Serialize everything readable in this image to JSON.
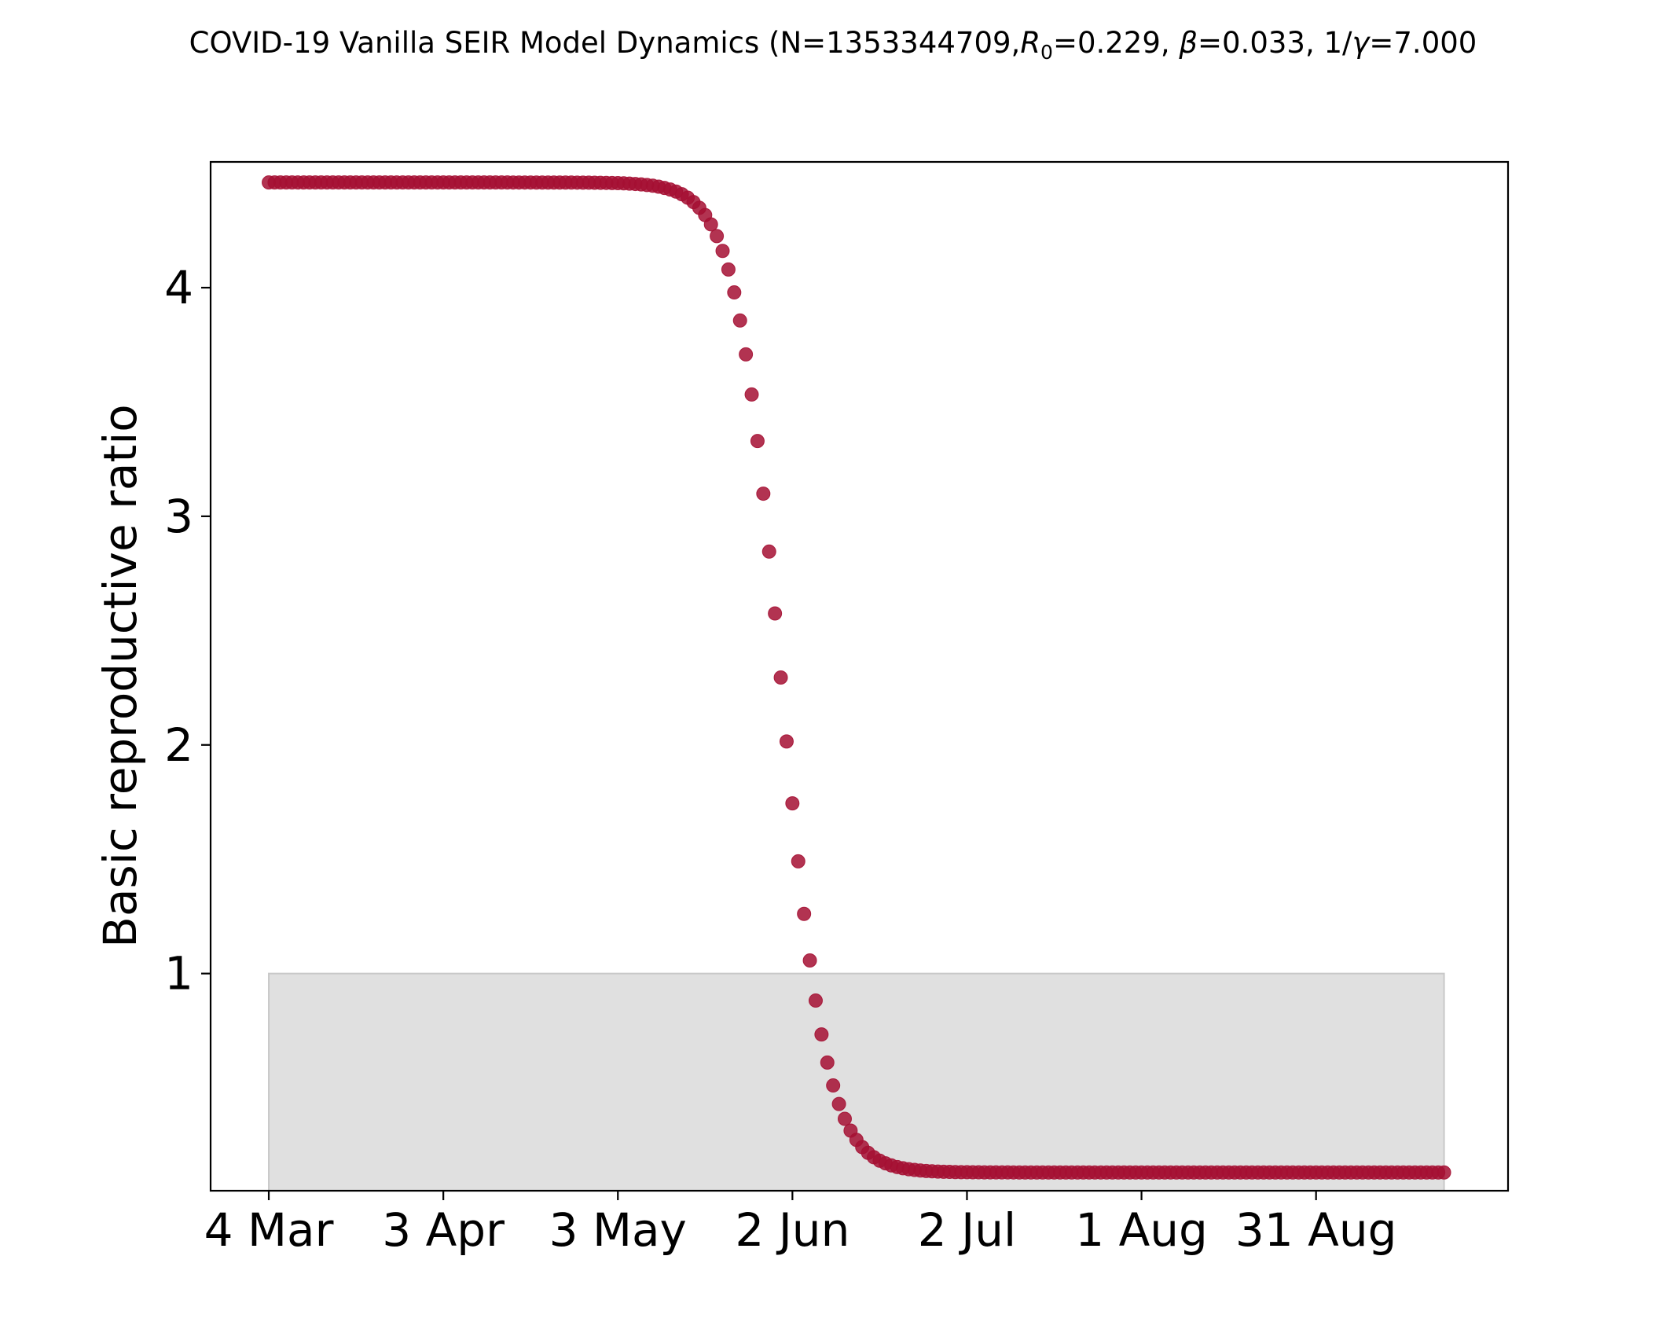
{
  "chart_data": {
    "type": "scatter",
    "title": {
      "pre": "COVID-19 Vanilla SEIR Model Dynamics (N=1353344709,",
      "r_sym": "R",
      "r_sub": "0",
      "r_val": "=0.229, ",
      "beta_sym": "β",
      "beta_val": "=0.033, 1/",
      "gamma_sym": "γ",
      "gamma_val": "=7.000"
    },
    "ylabel": "Basic reproductive ratio",
    "xlabel": "",
    "x_range": [
      "2020-03-04",
      "2020-09-22"
    ],
    "xlim": [
      "2020-02-23",
      "2020-10-03"
    ],
    "ylim": [
      0.05,
      4.55
    ],
    "x_ticks": [
      {
        "date": "2020-03-04",
        "label": "4 Mar"
      },
      {
        "date": "2020-04-03",
        "label": "3 Apr"
      },
      {
        "date": "2020-05-03",
        "label": "3 May"
      },
      {
        "date": "2020-06-02",
        "label": "2 Jun"
      },
      {
        "date": "2020-07-02",
        "label": "2 Jul"
      },
      {
        "date": "2020-08-01",
        "label": "1 Aug"
      },
      {
        "date": "2020-08-31",
        "label": "31 Aug"
      }
    ],
    "y_ticks": [
      {
        "value": 1,
        "label": "1"
      },
      {
        "value": 2,
        "label": "2"
      },
      {
        "value": 3,
        "label": "3"
      },
      {
        "value": 4,
        "label": "4"
      }
    ],
    "band": {
      "y_from": 0.05,
      "y_to": 1.0,
      "x_from": "2020-03-04",
      "x_to": "2020-09-22",
      "color": "#e0e0e0"
    },
    "series": [
      {
        "color": "#a50f33",
        "curve": {
          "start": "2020-03-04",
          "end": "2020-09-22",
          "y_high": 4.46,
          "y_low": 0.13,
          "midpoint": "2020-05-31",
          "rate_per_day": 0.26
        }
      }
    ],
    "grid": false,
    "legend": "none"
  }
}
